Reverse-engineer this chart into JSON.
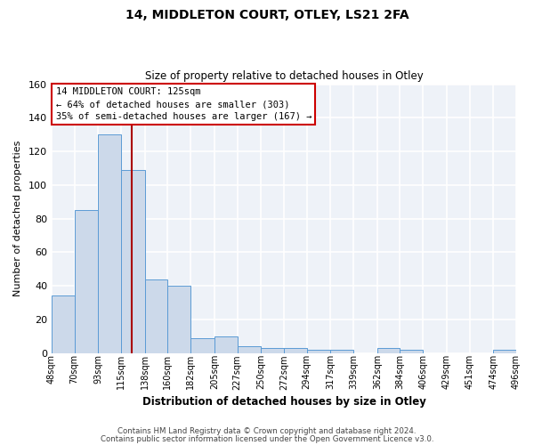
{
  "title": "14, MIDDLETON COURT, OTLEY, LS21 2FA",
  "subtitle": "Size of property relative to detached houses in Otley",
  "xlabel": "Distribution of detached houses by size in Otley",
  "ylabel": "Number of detached properties",
  "bin_edges": [
    48,
    70,
    93,
    115,
    138,
    160,
    182,
    205,
    227,
    250,
    272,
    294,
    317,
    339,
    362,
    384,
    406,
    429,
    451,
    474,
    496
  ],
  "bar_heights": [
    34,
    85,
    130,
    109,
    44,
    40,
    9,
    10,
    4,
    3,
    3,
    2,
    2,
    0,
    3,
    2,
    0,
    0,
    0,
    2
  ],
  "bar_color": "#ccd9ea",
  "bar_edge_color": "#5b9bd5",
  "property_size": 125,
  "vline_color": "#aa0000",
  "annotation_title": "14 MIDDLETON COURT: 125sqm",
  "annotation_line1": "← 64% of detached houses are smaller (303)",
  "annotation_line2": "35% of semi-detached houses are larger (167) →",
  "annotation_box_edgecolor": "#cc0000",
  "ylim": [
    0,
    160
  ],
  "yticks": [
    0,
    20,
    40,
    60,
    80,
    100,
    120,
    140,
    160
  ],
  "footer_line1": "Contains HM Land Registry data © Crown copyright and database right 2024.",
  "footer_line2": "Contains public sector information licensed under the Open Government Licence v3.0.",
  "background_color": "#eef2f8",
  "grid_color": "#ffffff"
}
